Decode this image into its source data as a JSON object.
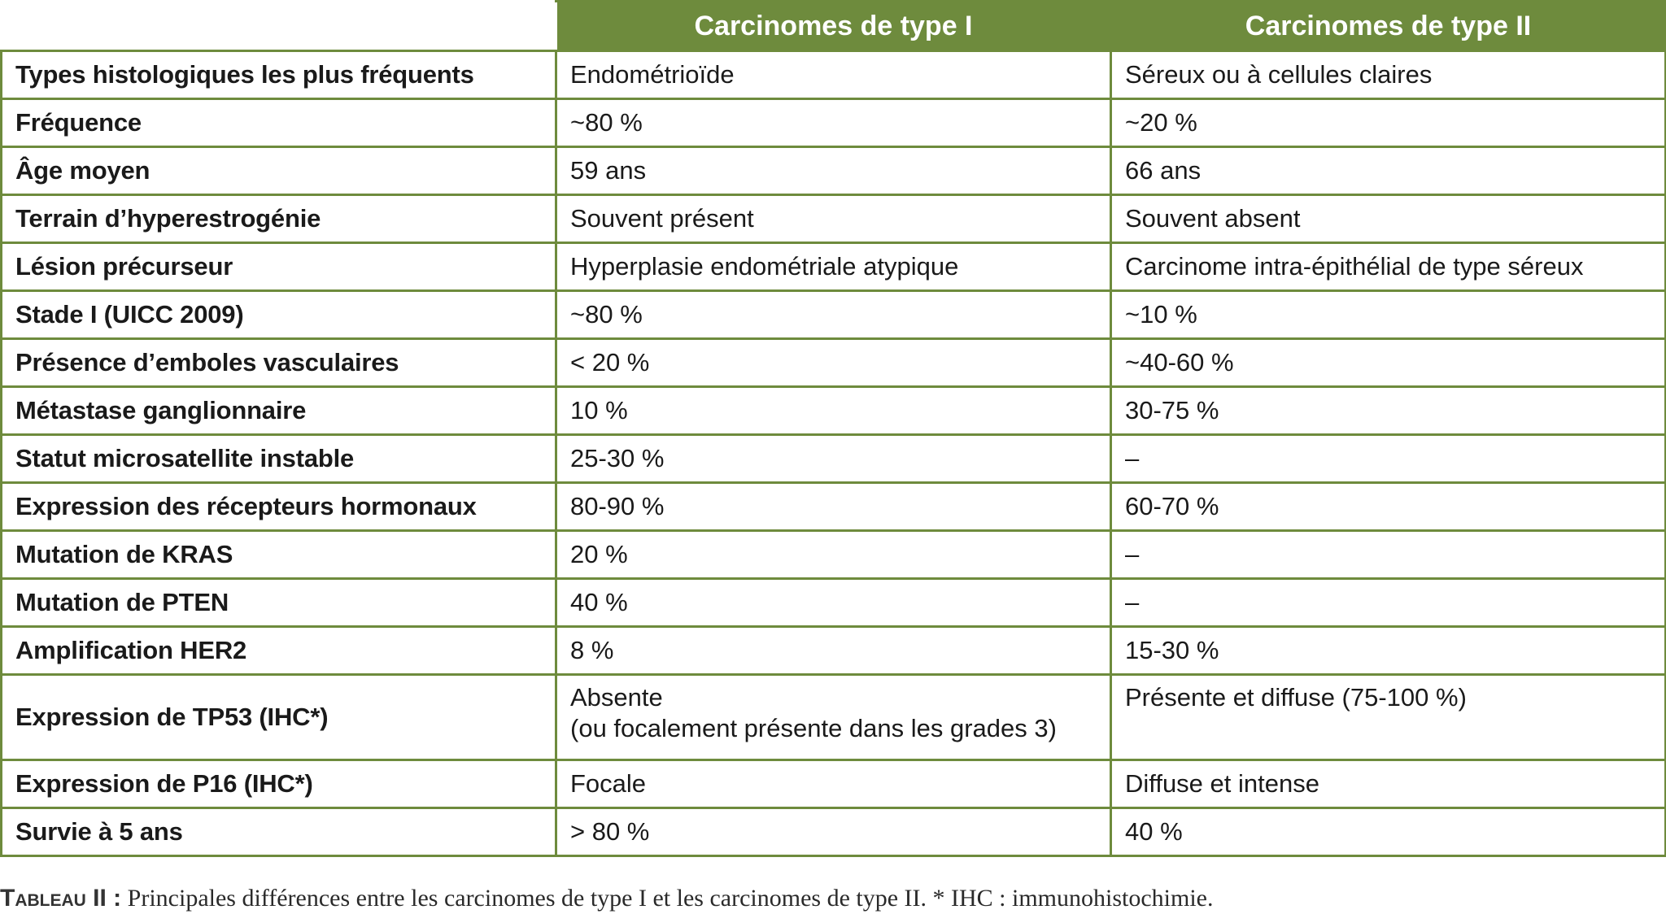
{
  "table": {
    "headers": [
      "",
      "Carcinomes de type I",
      "Carcinomes de type II"
    ],
    "rows": [
      [
        "Types histologiques les plus fréquents",
        "Endométrioïde",
        "Séreux ou à cellules claires"
      ],
      [
        "Fréquence",
        "~80 %",
        "~20 %"
      ],
      [
        "Âge moyen",
        "59 ans",
        "66 ans"
      ],
      [
        "Terrain d’hyperestrogénie",
        "Souvent présent",
        "Souvent absent"
      ],
      [
        "Lésion précurseur",
        "Hyperplasie endométriale atypique",
        "Carcinome intra-épithélial de type séreux"
      ],
      [
        "Stade I (UICC 2009)",
        "~80 %",
        "~10 %"
      ],
      [
        "Présence d’emboles vasculaires",
        "< 20 %",
        "~40-60 %"
      ],
      [
        "Métastase ganglionnaire",
        "10 %",
        "30-75 %"
      ],
      [
        "Statut microsatellite instable",
        "25-30 %",
        "–"
      ],
      [
        "Expression des récepteurs hormonaux",
        "80-90 %",
        "60-70 %"
      ],
      [
        "Mutation de KRAS",
        "20 %",
        "–"
      ],
      [
        "Mutation de PTEN",
        "40 %",
        "–"
      ],
      [
        "Amplification HER2",
        "8 %",
        "15-30 %"
      ],
      [
        "Expression de TP53 (IHC*)",
        "Absente\n(ou focalement présente dans les grades 3)",
        "Présente et diffuse (75-100 %)"
      ],
      [
        "Expression de P16 (IHC*)",
        "Focale",
        "Diffuse et intense"
      ],
      [
        "Survie à 5 ans",
        "> 80 %",
        "40 %"
      ]
    ]
  },
  "caption": {
    "label": "Tableau II :",
    "text": " Principales différences entre les carcinomes de type I et les carcinomes de type II. * IHC : immunohistochimie."
  },
  "colors": {
    "accent": "#6e8b3d"
  }
}
